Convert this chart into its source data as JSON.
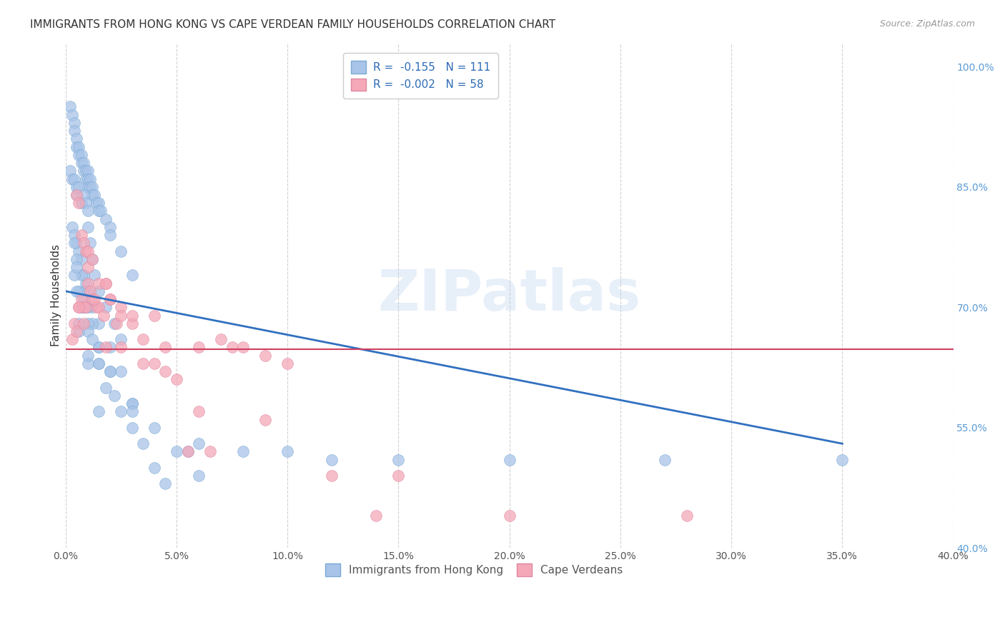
{
  "title": "IMMIGRANTS FROM HONG KONG VS CAPE VERDEAN FAMILY HOUSEHOLDS CORRELATION CHART",
  "source": "Source: ZipAtlas.com",
  "ylabel": "Family Households",
  "y_ticks": [
    40.0,
    55.0,
    70.0,
    85.0,
    100.0
  ],
  "x_ticks": [
    0.0,
    5.0,
    10.0,
    15.0,
    20.0,
    25.0,
    30.0,
    35.0,
    40.0
  ],
  "x_lim": [
    0.0,
    40.0
  ],
  "y_lim": [
    40.0,
    103.0
  ],
  "watermark": "ZIPatlas",
  "blue_scatter_x": [
    0.2,
    0.3,
    0.4,
    0.4,
    0.5,
    0.5,
    0.6,
    0.6,
    0.7,
    0.7,
    0.8,
    0.8,
    0.9,
    0.9,
    1.0,
    1.0,
    1.0,
    1.1,
    1.1,
    1.2,
    1.2,
    1.3,
    1.4,
    1.5,
    1.5,
    1.6,
    1.8,
    2.0,
    2.0,
    2.5,
    3.0,
    0.2,
    0.3,
    0.4,
    0.5,
    0.5,
    0.6,
    0.7,
    0.8,
    0.9,
    1.0,
    1.0,
    1.1,
    1.2,
    1.3,
    1.5,
    1.8,
    2.2,
    2.5,
    0.3,
    0.4,
    0.5,
    0.6,
    0.7,
    0.8,
    0.9,
    1.0,
    1.2,
    1.5,
    2.0,
    2.5,
    3.0,
    0.4,
    0.5,
    0.7,
    0.8,
    1.0,
    1.2,
    1.5,
    2.0,
    3.0,
    4.0,
    5.0,
    6.0,
    0.4,
    0.6,
    0.8,
    1.0,
    1.5,
    2.0,
    3.0,
    0.5,
    0.7,
    1.0,
    1.5,
    2.2,
    0.6,
    1.0,
    1.5,
    0.8,
    1.2,
    0.5,
    0.9,
    1.5,
    2.5,
    4.0,
    0.6,
    1.0,
    1.8,
    3.0,
    5.5,
    6.0,
    8.0,
    10.0,
    12.0,
    15.0,
    20.0,
    27.0,
    35.0,
    4.5,
    3.5
  ],
  "blue_scatter_y": [
    95,
    94,
    93,
    92,
    91,
    90,
    90,
    89,
    89,
    88,
    88,
    87,
    87,
    86,
    87,
    86,
    85,
    86,
    85,
    85,
    84,
    84,
    83,
    83,
    82,
    82,
    81,
    80,
    79,
    77,
    74,
    87,
    86,
    86,
    85,
    84,
    85,
    83,
    84,
    83,
    82,
    80,
    78,
    76,
    74,
    72,
    70,
    68,
    66,
    80,
    79,
    78,
    77,
    76,
    74,
    73,
    72,
    70,
    68,
    65,
    62,
    58,
    78,
    76,
    74,
    72,
    70,
    68,
    65,
    62,
    58,
    55,
    52,
    49,
    74,
    72,
    70,
    68,
    65,
    62,
    57,
    72,
    70,
    67,
    63,
    59,
    68,
    63,
    57,
    71,
    66,
    75,
    70,
    63,
    57,
    50,
    67,
    64,
    60,
    55,
    52,
    53,
    52,
    52,
    51,
    51,
    51,
    51,
    51,
    48,
    53
  ],
  "pink_scatter_x": [
    0.3,
    0.4,
    0.5,
    0.6,
    0.7,
    0.8,
    0.9,
    1.0,
    1.1,
    1.2,
    1.4,
    1.5,
    1.7,
    1.8,
    2.0,
    2.3,
    2.5,
    3.0,
    3.5,
    4.0,
    4.5,
    5.0,
    6.0,
    7.0,
    7.5,
    8.0,
    9.0,
    10.0,
    12.0,
    15.0,
    0.5,
    0.6,
    0.7,
    0.8,
    0.9,
    1.0,
    1.3,
    1.5,
    1.8,
    2.0,
    2.5,
    3.0,
    4.0,
    5.5,
    6.5,
    0.6,
    0.8,
    1.0,
    1.2,
    1.8,
    2.5,
    3.5,
    4.5,
    6.0,
    9.0,
    14.0,
    20.0,
    28.0
  ],
  "pink_scatter_y": [
    66,
    68,
    67,
    70,
    71,
    70,
    70,
    73,
    72,
    71,
    70,
    70,
    69,
    73,
    71,
    68,
    70,
    68,
    66,
    63,
    62,
    61,
    65,
    66,
    65,
    65,
    64,
    63,
    49,
    49,
    84,
    83,
    79,
    78,
    77,
    75,
    71,
    73,
    73,
    71,
    69,
    69,
    69,
    52,
    52,
    70,
    68,
    77,
    76,
    65,
    65,
    63,
    65,
    57,
    56,
    44,
    44,
    44
  ],
  "blue_line_x0": 0.0,
  "blue_line_x1": 35.0,
  "blue_line_y0": 72.0,
  "blue_line_y1": 53.0,
  "pink_line_x0": 0.0,
  "pink_line_x1": 40.0,
  "pink_line_y0": 64.8,
  "pink_line_y1": 64.8,
  "blue_color": "#a8c4e8",
  "blue_edge_color": "#7aaad4",
  "pink_color": "#f4a8b8",
  "pink_edge_color": "#e088a0",
  "blue_line_color": "#3070c0",
  "pink_line_color": "#d04060",
  "legend_blue_label": "R =  -0.155   N = 111",
  "legend_pink_label": "R =  -0.002   N = 58",
  "legend_blue_bottom": "Immigrants from Hong Kong",
  "legend_pink_bottom": "Cape Verdeans",
  "title_fontsize": 11,
  "source_fontsize": 9,
  "axis_label_fontsize": 11,
  "tick_fontsize": 10,
  "legend_fontsize": 11
}
